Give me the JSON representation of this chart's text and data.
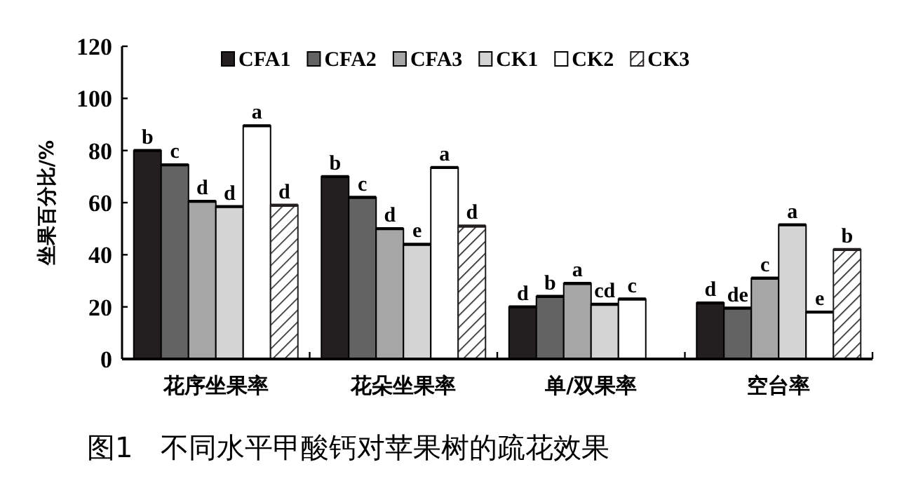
{
  "chart_data": {
    "type": "bar",
    "title": "图1　不同水平甲酸钙对苹果树的疏花效果",
    "ylabel": "坐果百分比/%",
    "categories": [
      "花序坐果率",
      "花朵坐果率",
      "单/双果率",
      "空台率"
    ],
    "ylim": [
      0,
      120
    ],
    "yticks": [
      0,
      20,
      40,
      60,
      80,
      100,
      120
    ],
    "grid": false,
    "legend": "top",
    "series": [
      {
        "name": "CFA1",
        "color": "#231f20",
        "values": [
          80,
          70,
          20,
          21.5
        ],
        "value_labels": [
          "b",
          "b",
          "d",
          "d"
        ]
      },
      {
        "name": "CFA2",
        "color": "#636363",
        "values": [
          74.5,
          62,
          24,
          19.5
        ],
        "value_labels": [
          "c",
          "c",
          "b",
          "de"
        ]
      },
      {
        "name": "CFA3",
        "color": "#a6a6a6",
        "values": [
          60.5,
          50,
          29,
          31
        ],
        "value_labels": [
          "d",
          "d",
          "a",
          "c"
        ]
      },
      {
        "name": "CK1",
        "color": "#d4d4d4",
        "values": [
          58.5,
          44,
          21,
          51.5
        ],
        "value_labels": [
          "d",
          "e",
          "cd",
          "a"
        ]
      },
      {
        "name": "CK2",
        "color": "#ffffff",
        "values": [
          89.5,
          73.5,
          23,
          18
        ],
        "value_labels": [
          "a",
          "a",
          "c",
          "e"
        ]
      },
      {
        "name": "CK3",
        "color": "#231f20",
        "values": [
          59,
          51,
          null,
          42
        ],
        "value_labels": [
          "d",
          "d",
          null,
          "b"
        ]
      }
    ]
  }
}
